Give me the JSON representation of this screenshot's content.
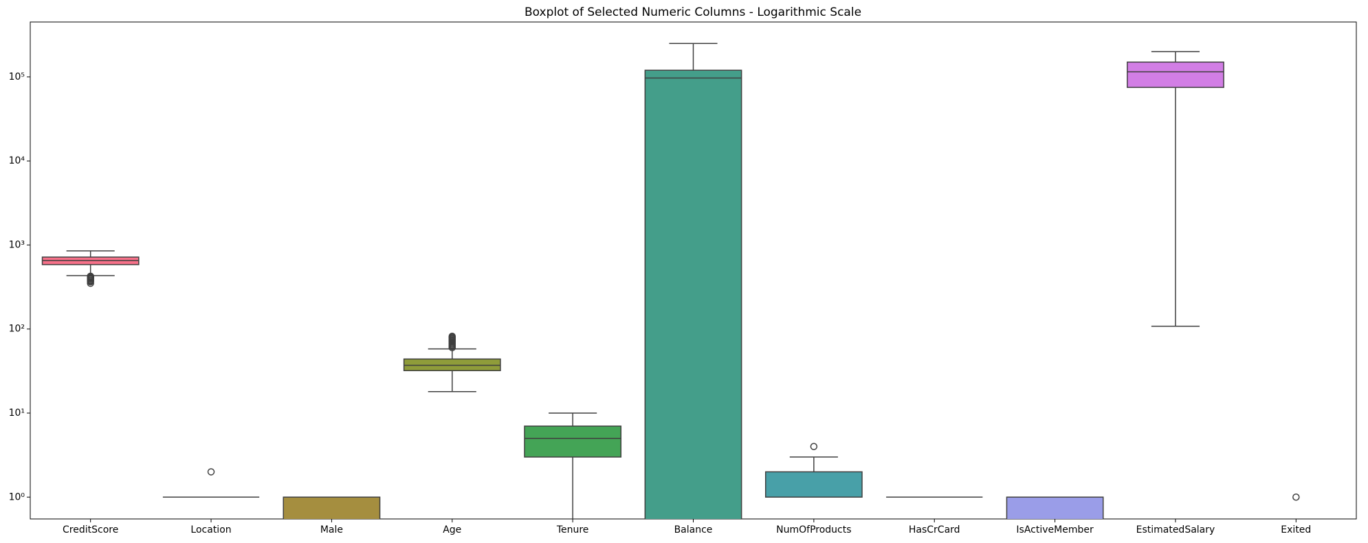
{
  "chart_data": {
    "type": "box",
    "title": "Boxplot of Selected Numeric Columns - Logarithmic Scale",
    "log_scale": true,
    "categories": [
      "CreditScore",
      "Location",
      "Male",
      "Age",
      "Tenure",
      "Balance",
      "NumOfProducts",
      "HasCrCard",
      "IsActiveMember",
      "EstimatedSalary",
      "Exited"
    ],
    "colors": [
      "#f77189",
      "#dc8932",
      "#a58e3f",
      "#8f9c3a",
      "#44a456",
      "#449e8a",
      "#48a0a8",
      "#50a1c0",
      "#9a9de8",
      "#d27ee5",
      "#f56db5"
    ],
    "boxes": [
      {
        "q1": 584,
        "median": 652,
        "q3": 718,
        "whislo": 432,
        "whishi": 850,
        "fliers": [
          350,
          365,
          376,
          383,
          395,
          405,
          411,
          415,
          420,
          425
        ]
      },
      {
        "q1": 1,
        "median": 1,
        "q3": 1,
        "whislo": 1,
        "whishi": 1,
        "fliers": [
          2
        ]
      },
      {
        "q1": 0,
        "median": 1,
        "q3": 1,
        "whislo": 0,
        "whishi": 1,
        "fliers": []
      },
      {
        "q1": 32,
        "median": 37,
        "q3": 44,
        "whislo": 18,
        "whishi": 58,
        "fliers": [
          60,
          62,
          64,
          66,
          68,
          70,
          72,
          74,
          76,
          78,
          80,
          82
        ]
      },
      {
        "q1": 3,
        "median": 5,
        "q3": 7,
        "whislo": 0,
        "whishi": 10,
        "fliers": []
      },
      {
        "q1": 0,
        "median": 97000,
        "q3": 120000,
        "whislo": 0,
        "whishi": 250000,
        "fliers": []
      },
      {
        "q1": 1,
        "median": 1,
        "q3": 2,
        "whislo": 1,
        "whishi": 3,
        "fliers": [
          4
        ]
      },
      {
        "q1": 1,
        "median": 1,
        "q3": 1,
        "whislo": 1,
        "whishi": 1,
        "fliers": []
      },
      {
        "q1": 0,
        "median": 1,
        "q3": 1,
        "whislo": 0,
        "whishi": 1,
        "fliers": []
      },
      {
        "q1": 75000,
        "median": 115000,
        "q3": 150000,
        "whislo": 108,
        "whishi": 200000,
        "fliers": []
      },
      {
        "q1": 0,
        "median": 0,
        "q3": 0,
        "whislo": 0,
        "whishi": 0,
        "fliers": [
          1
        ]
      }
    ],
    "ylim": [
      0.55,
      450000
    ],
    "yticks": [
      {
        "value": 1,
        "label": "10⁰"
      },
      {
        "value": 10,
        "label": "10¹"
      },
      {
        "value": 100,
        "label": "10²"
      },
      {
        "value": 1000,
        "label": "10³"
      },
      {
        "value": 10000,
        "label": "10⁴"
      },
      {
        "value": 100000,
        "label": "10⁵"
      }
    ]
  }
}
